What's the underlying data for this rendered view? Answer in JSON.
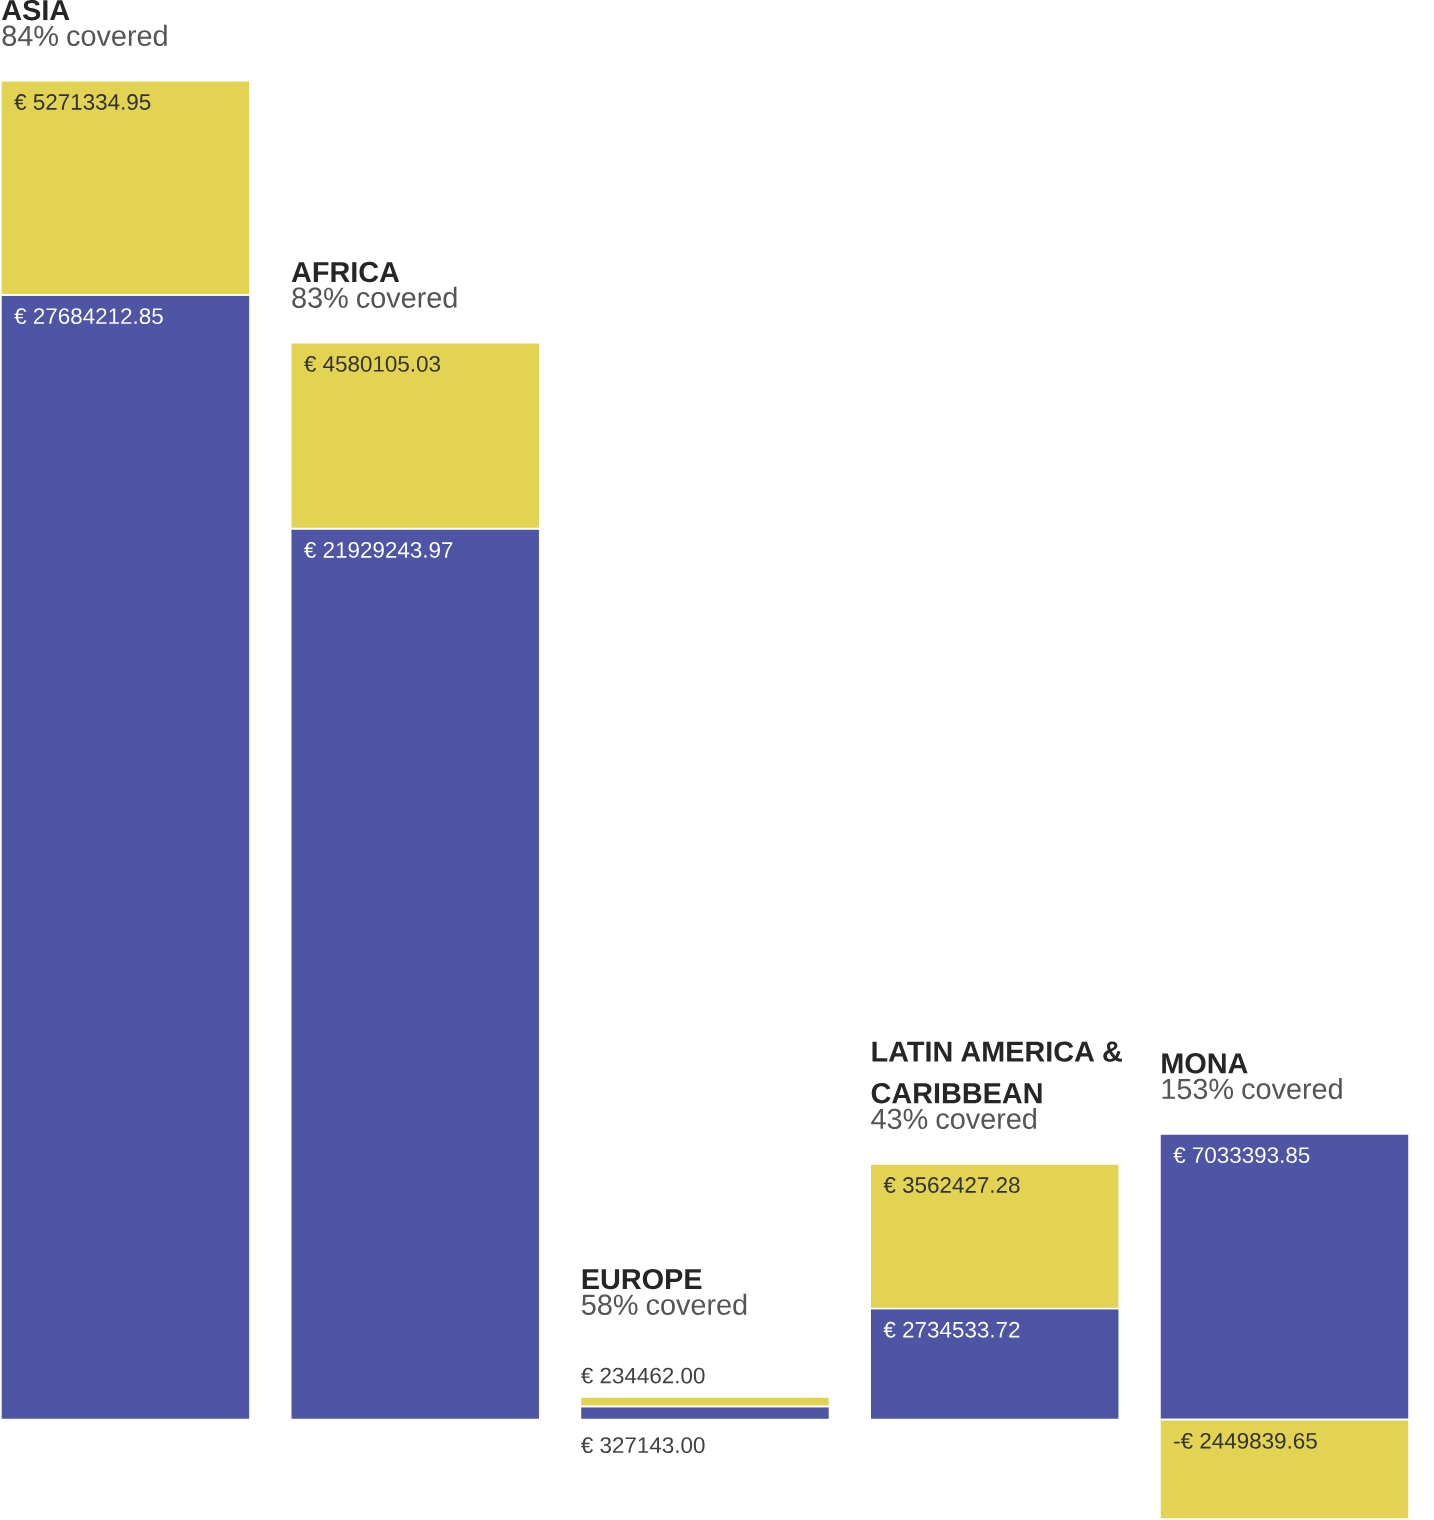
{
  "chart_data": {
    "type": "bar",
    "stacked": true,
    "categories": [
      "ASIA",
      "AFRICA",
      "EUROPE",
      "LATIN AMERICA & CARIBBEAN",
      "MONA"
    ],
    "annotations": [
      "84% covered",
      "83% covered",
      "58% covered",
      "43% covered",
      "153% covered"
    ],
    "series": [
      {
        "color": "#4e55a5",
        "values": [
          27684212.85,
          21929243.97,
          327143.0,
          2734533.72,
          7033393.85
        ],
        "value_labels": [
          "€ 27684212.85",
          "€ 21929243.97",
          "€ 327143.00",
          "€ 2734533.72",
          "€ 7033393.85"
        ]
      },
      {
        "color": "#e3d353",
        "values": [
          5271334.95,
          4580105.03,
          234462.0,
          3562427.28,
          -2449839.65
        ],
        "value_labels": [
          "€ 5271334.95",
          "€ 4580105.03",
          "€ 234462.00",
          "€ 3562427.28",
          "-€ 2449839.65"
        ]
      }
    ]
  }
}
